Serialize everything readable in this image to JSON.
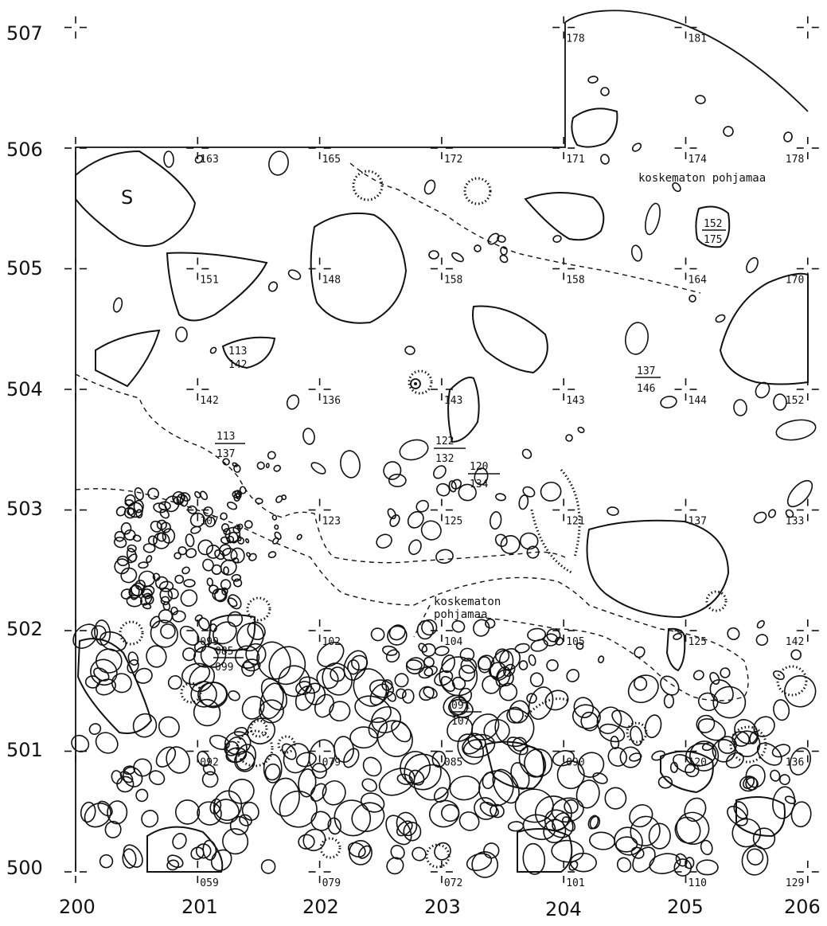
{
  "x_axis": [
    "200",
    "201",
    "202",
    "203",
    "204",
    "205",
    "206"
  ],
  "y_axis": [
    "507",
    "506",
    "505",
    "504",
    "503",
    "502",
    "501",
    "500"
  ],
  "grid_labels": [
    {
      "x": 204,
      "y": 507,
      "text": "178"
    },
    {
      "x": 205,
      "y": 507,
      "text": "181"
    },
    {
      "x": 201,
      "y": 506,
      "text": "163"
    },
    {
      "x": 202,
      "y": 506,
      "text": "165"
    },
    {
      "x": 203,
      "y": 506,
      "text": "172"
    },
    {
      "x": 204,
      "y": 506,
      "text": "171"
    },
    {
      "x": 205,
      "y": 506,
      "text": "174"
    },
    {
      "x": 206,
      "y": 506,
      "text": "178"
    },
    {
      "x": 201,
      "y": 505,
      "text": "151"
    },
    {
      "x": 202,
      "y": 505,
      "text": "148"
    },
    {
      "x": 203,
      "y": 505,
      "text": "158"
    },
    {
      "x": 204,
      "y": 505,
      "text": "158"
    },
    {
      "x": 205,
      "y": 505,
      "text": "164"
    },
    {
      "x": 206,
      "y": 505,
      "text": "170"
    },
    {
      "x": 201,
      "y": 504,
      "text": "142"
    },
    {
      "x": 202,
      "y": 504,
      "text": "136"
    },
    {
      "x": 203,
      "y": 504,
      "text": "143"
    },
    {
      "x": 204,
      "y": 504,
      "text": "143"
    },
    {
      "x": 205,
      "y": 504,
      "text": "144"
    },
    {
      "x": 206,
      "y": 504,
      "text": "152"
    },
    {
      "x": 201,
      "y": 503,
      "text": "107"
    },
    {
      "x": 202,
      "y": 503,
      "text": "123"
    },
    {
      "x": 203,
      "y": 503,
      "text": "125"
    },
    {
      "x": 204,
      "y": 503,
      "text": "121"
    },
    {
      "x": 205,
      "y": 503,
      "text": "137"
    },
    {
      "x": 206,
      "y": 503,
      "text": "133"
    },
    {
      "x": 201,
      "y": 502,
      "text": "099"
    },
    {
      "x": 202,
      "y": 502,
      "text": "102"
    },
    {
      "x": 203,
      "y": 502,
      "text": "104"
    },
    {
      "x": 204,
      "y": 502,
      "text": "105"
    },
    {
      "x": 205,
      "y": 502,
      "text": "125"
    },
    {
      "x": 206,
      "y": 502,
      "text": "142"
    },
    {
      "x": 201,
      "y": 501,
      "text": "092"
    },
    {
      "x": 202,
      "y": 501,
      "text": "079"
    },
    {
      "x": 203,
      "y": 501,
      "text": "085"
    },
    {
      "x": 204,
      "y": 501,
      "text": "090"
    },
    {
      "x": 205,
      "y": 501,
      "text": "120"
    },
    {
      "x": 206,
      "y": 501,
      "text": "136"
    },
    {
      "x": 201,
      "y": 500,
      "text": "059"
    },
    {
      "x": 202,
      "y": 500,
      "text": "079"
    },
    {
      "x": 203,
      "y": 500,
      "text": "072"
    },
    {
      "x": 204,
      "y": 500,
      "text": "101"
    },
    {
      "x": 205,
      "y": 500,
      "text": "110"
    },
    {
      "x": 206,
      "y": 500,
      "text": "129"
    }
  ],
  "stone_elevations": [
    {
      "top": "152",
      "bottom": "175"
    },
    {
      "top": "113",
      "bottom": "142"
    },
    {
      "top": "137",
      "bottom": "146"
    },
    {
      "top": "113",
      "bottom": "137"
    },
    {
      "top": "122",
      "bottom": "132"
    },
    {
      "top": "120",
      "bottom": "134"
    },
    {
      "top": "085",
      "bottom": "099"
    },
    {
      "top": "091",
      "bottom": "107"
    }
  ],
  "notes": {
    "stone_symbol": "S",
    "untouched_top": "koskematon pohjamaa",
    "untouched_mid_line1": "koskematon",
    "untouched_mid_line2": "pohjamaa"
  }
}
